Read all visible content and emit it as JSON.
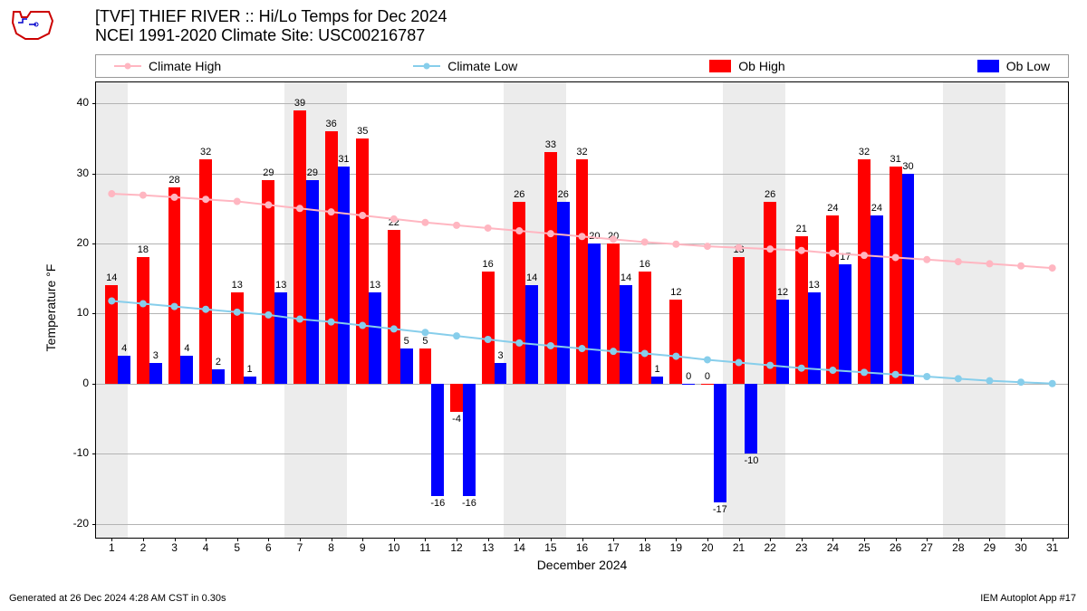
{
  "title_line1": "[TVF] THIEF RIVER :: Hi/Lo Temps for Dec 2024",
  "title_line2": "NCEI 1991-2020 Climate Site: USC00216787",
  "footer_left": "Generated at 26 Dec 2024 4:28 AM CST in 0.30s",
  "footer_right": "IEM Autoplot App #17",
  "ylabel": "Temperature °F",
  "xlabel": "December 2024",
  "legend": {
    "climate_high": "Climate High",
    "climate_low": "Climate Low",
    "ob_high": "Ob High",
    "ob_low": "Ob Low"
  },
  "chart": {
    "type": "bar+line",
    "ylim": [
      -22,
      43
    ],
    "yticks": [
      -20,
      -10,
      0,
      10,
      20,
      30,
      40
    ],
    "days": [
      1,
      2,
      3,
      4,
      5,
      6,
      7,
      8,
      9,
      10,
      11,
      12,
      13,
      14,
      15,
      16,
      17,
      18,
      19,
      20,
      21,
      22,
      23,
      24,
      25,
      26,
      27,
      28,
      29,
      30,
      31
    ],
    "ob_high": [
      14,
      18,
      28,
      32,
      13,
      29,
      39,
      36,
      35,
      22,
      5,
      -4,
      16,
      26,
      33,
      32,
      20,
      16,
      12,
      0,
      18,
      26,
      21,
      24,
      32,
      31,
      null,
      null,
      null,
      null,
      null
    ],
    "ob_low": [
      4,
      3,
      4,
      2,
      1,
      13,
      29,
      31,
      13,
      5,
      -16,
      -16,
      3,
      14,
      26,
      20,
      14,
      1,
      0,
      -17,
      -10,
      12,
      13,
      17,
      24,
      30,
      null,
      null,
      null,
      null,
      null
    ],
    "climate_high": [
      27.1,
      26.9,
      26.6,
      26.3,
      26.0,
      25.5,
      25.0,
      24.5,
      24.0,
      23.5,
      23.0,
      22.6,
      22.2,
      21.8,
      21.4,
      21.0,
      20.6,
      20.2,
      19.9,
      19.6,
      19.4,
      19.2,
      19.0,
      18.6,
      18.3,
      18.0,
      17.7,
      17.4,
      17.1,
      16.8,
      16.5
    ],
    "climate_low": [
      11.8,
      11.4,
      11.0,
      10.6,
      10.2,
      9.8,
      9.2,
      8.8,
      8.3,
      7.8,
      7.3,
      6.8,
      6.3,
      5.8,
      5.4,
      5.0,
      4.6,
      4.3,
      3.9,
      3.4,
      3.0,
      2.6,
      2.2,
      1.9,
      1.6,
      1.3,
      1.0,
      0.7,
      0.4,
      0.2,
      0.0
    ],
    "weekend_bands": [
      [
        1,
        1
      ],
      [
        7,
        8
      ],
      [
        14,
        15
      ],
      [
        21,
        22
      ],
      [
        28,
        29
      ]
    ],
    "colors": {
      "ob_high": "#ff0000",
      "ob_low": "#0000ff",
      "climate_high": "#ffb6c1",
      "climate_low": "#87ceeb",
      "grid": "#b3b3b3",
      "background": "#ffffff",
      "weekend": "#ececec"
    },
    "bar_width_each": 0.4,
    "marker_radius": 4,
    "line_width": 2,
    "label_fontsize": 11
  }
}
